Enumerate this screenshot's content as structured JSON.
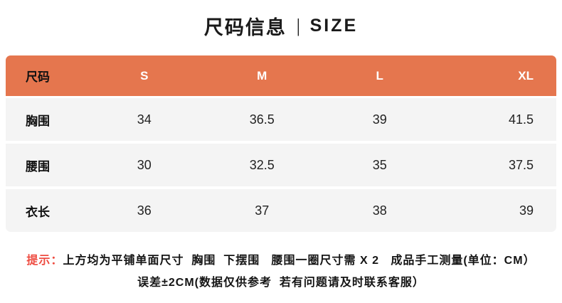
{
  "title": {
    "cn": "尺码信息",
    "divider": "|",
    "en": "SIZE"
  },
  "colors": {
    "header_bg": "#E5764E",
    "row_bg": "#F4F4F4",
    "tip_red": "#EE4B40",
    "header_text": "#FFFFFF",
    "body_text": "#1A1A1A"
  },
  "table": {
    "header": [
      "尺码",
      "S",
      "M",
      "L",
      "XL"
    ],
    "rows": [
      {
        "label": "胸围",
        "values": [
          "34",
          "36.5",
          "39",
          "41.5"
        ]
      },
      {
        "label": "腰围",
        "values": [
          "30",
          "32.5",
          "35",
          "37.5"
        ]
      },
      {
        "label": "衣长",
        "values": [
          "36",
          "37",
          "38",
          "39"
        ]
      }
    ]
  },
  "note": {
    "prefix": "提示：",
    "line1": "上方均为平铺单面尺寸  胸围  下摆围   腰围一圈尺寸需 X 2   成品手工测量(单位：CM）",
    "line2": "误差±2CM(数据仅供参考  若有问题请及时联系客服）"
  }
}
